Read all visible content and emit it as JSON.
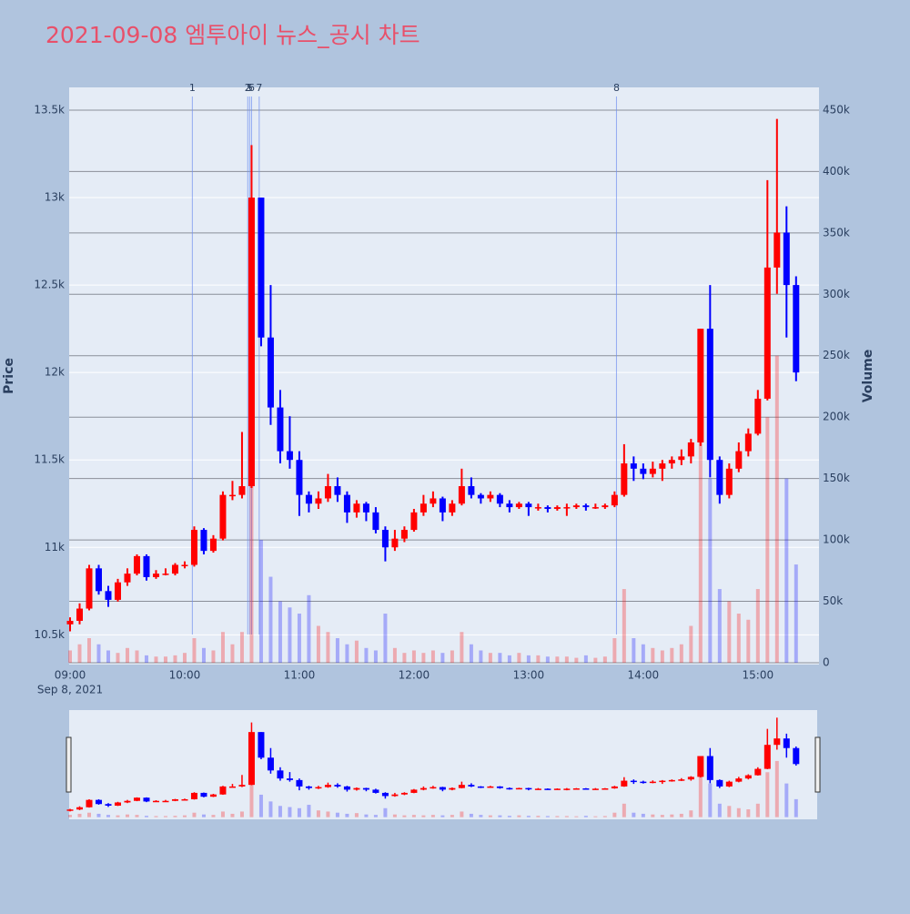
{
  "chart_data": {
    "type": "candlestick",
    "title": "2021-09-08 엠투아이 뉴스_공시 차트",
    "y_label": "Price",
    "y2_label": "Volume",
    "x_date_label": "Sep 8, 2021",
    "increasing_color": "#ff0000",
    "decreasing_color": "#0000ff",
    "x": [
      "09:00",
      "09:05",
      "09:10",
      "09:15",
      "09:20",
      "09:25",
      "09:30",
      "09:35",
      "09:40",
      "09:45",
      "09:50",
      "09:55",
      "10:00",
      "10:05",
      "10:10",
      "10:15",
      "10:20",
      "10:25",
      "10:30",
      "10:35",
      "10:40",
      "10:45",
      "10:50",
      "10:55",
      "11:00",
      "11:05",
      "11:10",
      "11:15",
      "11:20",
      "11:25",
      "11:30",
      "11:35",
      "11:40",
      "11:45",
      "11:50",
      "11:55",
      "12:00",
      "12:05",
      "12:10",
      "12:15",
      "12:20",
      "12:25",
      "12:30",
      "12:35",
      "12:40",
      "12:45",
      "12:50",
      "12:55",
      "13:00",
      "13:05",
      "13:10",
      "13:15",
      "13:20",
      "13:25",
      "13:30",
      "13:35",
      "13:40",
      "13:45",
      "13:50",
      "13:55",
      "14:00",
      "14:05",
      "14:10",
      "14:15",
      "14:20",
      "14:25",
      "14:30",
      "14:35",
      "14:40",
      "14:45",
      "14:50",
      "14:55",
      "15:00",
      "15:05",
      "15:10",
      "15:15",
      "15:20"
    ],
    "open": [
      10560,
      10580,
      10650,
      10880,
      10750,
      10700,
      10800,
      10850,
      10950,
      10830,
      10850,
      10850,
      10900,
      10900,
      11100,
      10980,
      11050,
      11300,
      11300,
      11350,
      13000,
      12200,
      11800,
      11550,
      11500,
      11300,
      11250,
      11280,
      11350,
      11300,
      11200,
      11250,
      11200,
      11100,
      11000,
      11050,
      11100,
      11200,
      11250,
      11280,
      11200,
      11250,
      11350,
      11300,
      11280,
      11300,
      11250,
      11230,
      11250,
      11230,
      11230,
      11220,
      11230,
      11230,
      11240,
      11230,
      11230,
      11240,
      11300,
      11480,
      11450,
      11420,
      11450,
      11480,
      11500,
      11520,
      11600,
      12250,
      11500,
      11300,
      11450,
      11550,
      11650,
      11850,
      12600,
      12800,
      12500
    ],
    "high": [
      10600,
      10680,
      10900,
      10900,
      10780,
      10820,
      10880,
      10960,
      10960,
      10870,
      10880,
      10910,
      10920,
      11120,
      11110,
      11070,
      11320,
      11380,
      11660,
      13300,
      13000,
      12500,
      11900,
      11750,
      11550,
      11320,
      11320,
      11420,
      11400,
      11320,
      11270,
      11260,
      11230,
      11120,
      11100,
      11120,
      11220,
      11300,
      11320,
      11290,
      11270,
      11450,
      11400,
      11310,
      11320,
      11310,
      11270,
      11260,
      11260,
      11250,
      11240,
      11240,
      11250,
      11250,
      11250,
      11250,
      11250,
      11320,
      11590,
      11520,
      11480,
      11490,
      11500,
      11520,
      11560,
      11620,
      12250,
      12500,
      11520,
      11480,
      11600,
      11680,
      11900,
      13100,
      13450,
      12950,
      12550
    ],
    "low": [
      10520,
      10560,
      10640,
      10730,
      10660,
      10690,
      10780,
      10840,
      10810,
      10820,
      10840,
      10840,
      10880,
      10890,
      10960,
      10970,
      11040,
      11270,
      11280,
      11340,
      12150,
      11700,
      11480,
      11450,
      11180,
      11200,
      11220,
      11260,
      11260,
      11140,
      11170,
      11150,
      11080,
      10920,
      10980,
      11030,
      11090,
      11180,
      11230,
      11150,
      11180,
      11240,
      11280,
      11250,
      11260,
      11230,
      11200,
      11220,
      11180,
      11210,
      11200,
      11210,
      11180,
      11220,
      11210,
      11220,
      11220,
      11230,
      11290,
      11380,
      11390,
      11400,
      11380,
      11450,
      11470,
      11480,
      11580,
      11400,
      11250,
      11280,
      11430,
      11520,
      11640,
      11840,
      12450,
      12200,
      11950
    ],
    "close": [
      10580,
      10650,
      10880,
      10750,
      10700,
      10800,
      10850,
      10950,
      10830,
      10850,
      10850,
      10900,
      10900,
      11100,
      10980,
      11050,
      11300,
      11300,
      11350,
      13000,
      12200,
      11800,
      11550,
      11500,
      11300,
      11250,
      11280,
      11350,
      11300,
      11200,
      11250,
      11200,
      11100,
      11000,
      11050,
      11100,
      11200,
      11250,
      11280,
      11200,
      11250,
      11350,
      11300,
      11280,
      11300,
      11250,
      11230,
      11250,
      11230,
      11230,
      11220,
      11230,
      11230,
      11240,
      11230,
      11230,
      11240,
      11300,
      11480,
      11450,
      11420,
      11450,
      11480,
      11500,
      11520,
      11600,
      12250,
      11500,
      11300,
      11450,
      11550,
      11650,
      11850,
      12600,
      12800,
      12500,
      12000
    ],
    "volume": [
      10000,
      15000,
      20000,
      15000,
      10000,
      8000,
      12000,
      10000,
      6000,
      5000,
      5000,
      6000,
      8000,
      20000,
      12000,
      10000,
      25000,
      15000,
      25000,
      150000,
      100000,
      70000,
      50000,
      45000,
      40000,
      55000,
      30000,
      25000,
      20000,
      15000,
      18000,
      12000,
      10000,
      40000,
      12000,
      8000,
      10000,
      8000,
      10000,
      8000,
      10000,
      25000,
      15000,
      10000,
      8000,
      8000,
      6000,
      8000,
      6000,
      6000,
      5000,
      5000,
      5000,
      4000,
      6000,
      4000,
      5000,
      20000,
      60000,
      20000,
      15000,
      12000,
      10000,
      12000,
      15000,
      30000,
      200000,
      150000,
      60000,
      50000,
      40000,
      35000,
      60000,
      200000,
      250000,
      150000,
      80000
    ],
    "markers": [
      {
        "x": "10:04",
        "label": "1"
      },
      {
        "x": "10:33",
        "label": "2"
      },
      {
        "x": "10:34",
        "label": "5"
      },
      {
        "x": "10:35",
        "label": "6"
      },
      {
        "x": "10:39",
        "label": "7"
      },
      {
        "x": "13:46",
        "label": "8"
      }
    ],
    "xlim": [
      "09:00",
      "15:32"
    ],
    "xticks": [
      "09:00",
      "10:00",
      "11:00",
      "12:00",
      "13:00",
      "14:00",
      "15:00"
    ],
    "ylim": [
      10330,
      13630
    ],
    "yticks": [
      {
        "value": 10500,
        "label": "10.5k"
      },
      {
        "value": 11000,
        "label": "11k"
      },
      {
        "value": 11500,
        "label": "11.5k"
      },
      {
        "value": 12000,
        "label": "12k"
      },
      {
        "value": 12500,
        "label": "12.5k"
      },
      {
        "value": 13000,
        "label": "13k"
      },
      {
        "value": 13500,
        "label": "13.5k"
      }
    ],
    "y2lim": [
      -1500,
      468500
    ],
    "y2ticks": [
      0,
      {
        "value": 50000,
        "label": "50k"
      },
      {
        "value": 100000,
        "label": "100k"
      },
      {
        "value": 150000,
        "label": "150k"
      },
      {
        "value": 200000,
        "label": "200k"
      },
      {
        "value": 250000,
        "label": "250k"
      },
      {
        "value": 300000,
        "label": "300k"
      },
      {
        "value": 350000,
        "label": "350k"
      },
      {
        "value": 400000,
        "label": "400k"
      },
      {
        "value": 450000,
        "label": "450k"
      }
    ],
    "grid": true
  }
}
